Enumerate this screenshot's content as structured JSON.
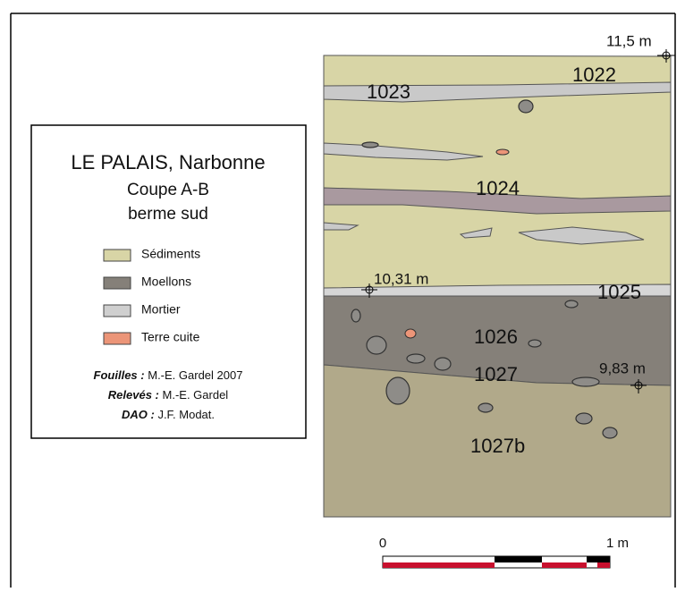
{
  "legend": {
    "title": "LE PALAIS, Narbonne",
    "subtitle": "Coupe A-B",
    "subtitle2": "berme sud",
    "items": [
      {
        "label": "Sédiments",
        "color": "#d8d5a6"
      },
      {
        "label": "Moellons",
        "color": "#858079"
      },
      {
        "label": "Mortier",
        "color": "#cfcfcf"
      },
      {
        "label": "Terre cuite",
        "color": "#ec9578"
      }
    ]
  },
  "credits": [
    {
      "role": "Fouilles :",
      "name": "M.-E. Gardel  2007"
    },
    {
      "role": "Relevés :",
      "name": "M.-E. Gardel"
    },
    {
      "role": "DAO :",
      "name": "J.F. Modat."
    }
  ],
  "layers": [
    "1022",
    "1023",
    "1024",
    "1025",
    "1026",
    "1027",
    "1027b"
  ],
  "elevations": [
    "11,5 m",
    "10,31 m",
    "9,83 m"
  ],
  "scale": {
    "start": "0",
    "end": "1 m"
  }
}
